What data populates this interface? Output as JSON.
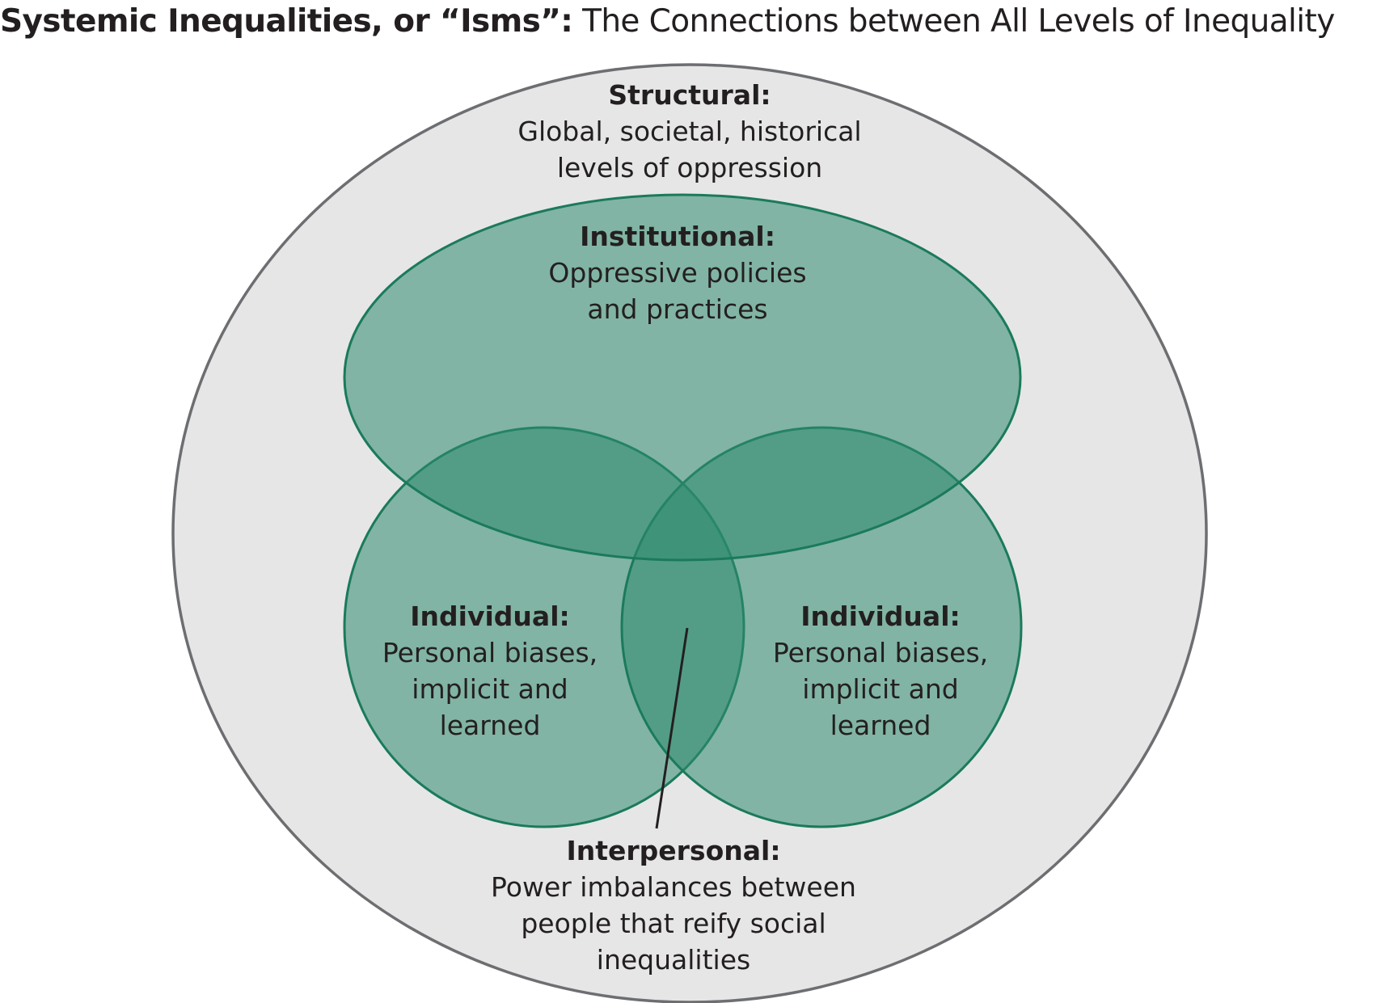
{
  "title": {
    "bold": "Systemic Inequalities, or “Isms”:",
    "rest": " The Connections between All Levels of Inequality"
  },
  "colors": {
    "outer_fill": "#e6e6e6",
    "outer_stroke": "#6d6e71",
    "green_fill": "#2e8b6e",
    "green_stroke": "#1b7a5c",
    "leader_line": "#231f20"
  },
  "labels": {
    "structural": {
      "heading": "Structural:",
      "line1": "Global, societal, historical",
      "line2": "levels of oppression"
    },
    "institutional": {
      "heading": "Institutional:",
      "line1": "Oppressive policies",
      "line2": "and practices"
    },
    "individual_left": {
      "heading": "Individual:",
      "line1": "Personal biases,",
      "line2": "implicit and",
      "line3": "learned"
    },
    "individual_right": {
      "heading": "Individual:",
      "line1": "Personal biases,",
      "line2": "implicit and",
      "line3": "learned"
    },
    "interpersonal": {
      "heading": "Interpersonal:",
      "line1": "Power imbalances between",
      "line2": "people that reify social",
      "line3": "inequalities"
    }
  }
}
